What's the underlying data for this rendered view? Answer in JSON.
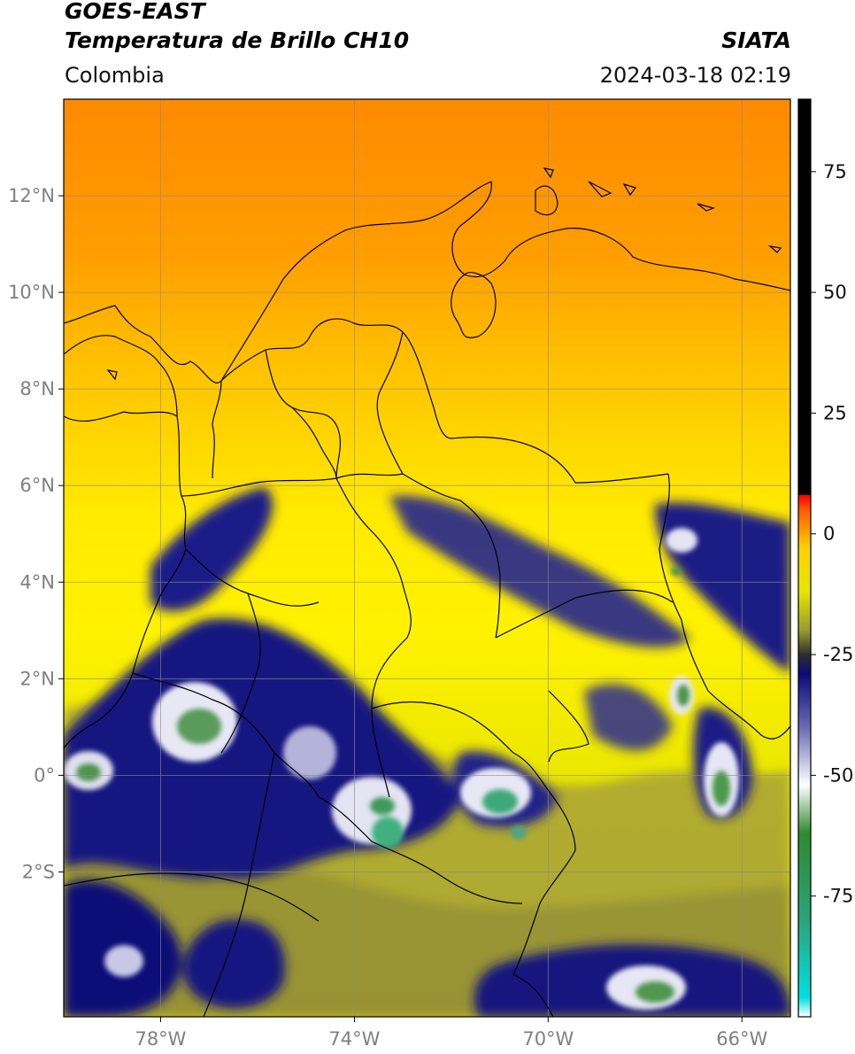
{
  "header": {
    "satellite": "GOES-EAST",
    "product": "Temperatura de Brillo CH10",
    "brand": "SIATA",
    "region": "Colombia",
    "timestamp": "2024-03-18 02:19"
  },
  "map": {
    "lon_range": [
      -80,
      -65
    ],
    "lat_range": [
      -5,
      14
    ],
    "lon_ticks": [
      {
        "value": -78,
        "label": "78°W"
      },
      {
        "value": -74,
        "label": "74°W"
      },
      {
        "value": -70,
        "label": "70°W"
      },
      {
        "value": -66,
        "label": "66°W"
      }
    ],
    "lat_ticks": [
      {
        "value": 12,
        "label": "12°N"
      },
      {
        "value": 10,
        "label": "10°N"
      },
      {
        "value": 8,
        "label": "8°N"
      },
      {
        "value": 6,
        "label": "6°N"
      },
      {
        "value": 4,
        "label": "4°N"
      },
      {
        "value": 2,
        "label": "2°N"
      },
      {
        "value": 0,
        "label": "0°"
      },
      {
        "value": -2,
        "label": "2°S"
      }
    ],
    "grid": true
  },
  "colorbar": {
    "range": [
      -100,
      90
    ],
    "ticks": [
      {
        "value": 75,
        "label": "75"
      },
      {
        "value": 50,
        "label": "50"
      },
      {
        "value": 25,
        "label": "25"
      },
      {
        "value": 0,
        "label": "0"
      },
      {
        "value": -25,
        "label": "-25"
      },
      {
        "value": -50,
        "label": "-50"
      },
      {
        "value": -75,
        "label": "-75"
      }
    ],
    "stops": [
      {
        "value": -100,
        "color": "#ffffff"
      },
      {
        "value": -96,
        "color": "#00e0e0"
      },
      {
        "value": -80,
        "color": "#2aa47a"
      },
      {
        "value": -62,
        "color": "#2f8a2f"
      },
      {
        "value": -52,
        "color": "#ffffff"
      },
      {
        "value": -40,
        "color": "#6a6ab4"
      },
      {
        "value": -29,
        "color": "#0b0b7a"
      },
      {
        "value": -25,
        "color": "#2e2e2e"
      },
      {
        "value": -20,
        "color": "#9a9a30"
      },
      {
        "value": -12,
        "color": "#e6e600"
      },
      {
        "value": -3,
        "color": "#ffd200"
      },
      {
        "value": 5,
        "color": "#ff5a00"
      },
      {
        "value": 8,
        "color": "#ff0000"
      },
      {
        "value": 8.1,
        "color": "#000000"
      },
      {
        "value": 90,
        "color": "#000000"
      }
    ]
  }
}
